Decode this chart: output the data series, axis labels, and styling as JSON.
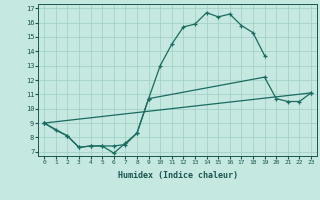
{
  "xlabel": "Humidex (Indice chaleur)",
  "bg_color": "#c5e8e0",
  "grid_color": "#9ecec5",
  "line_color": "#1a6b60",
  "xlim": [
    -0.5,
    23.5
  ],
  "ylim": [
    6.7,
    17.3
  ],
  "yticks": [
    7,
    8,
    9,
    10,
    11,
    12,
    13,
    14,
    15,
    16,
    17
  ],
  "xticks": [
    0,
    1,
    2,
    3,
    4,
    5,
    6,
    7,
    8,
    9,
    10,
    11,
    12,
    13,
    14,
    15,
    16,
    17,
    18,
    19,
    20,
    21,
    22,
    23
  ],
  "line1_x": [
    0,
    1,
    2,
    3,
    4,
    5,
    6,
    7,
    8,
    9,
    10,
    11,
    12,
    13,
    14,
    15,
    16,
    17,
    18,
    19
  ],
  "line1_y": [
    9.0,
    8.5,
    8.1,
    7.3,
    7.4,
    7.4,
    6.9,
    7.6,
    8.3,
    10.7,
    13.0,
    14.5,
    15.7,
    15.9,
    16.7,
    16.4,
    16.6,
    15.8,
    15.3,
    13.7
  ],
  "line2_x": [
    0,
    2,
    3,
    4,
    5,
    6,
    7,
    8,
    9,
    19,
    20,
    21,
    22,
    23
  ],
  "line2_y": [
    9.0,
    8.1,
    7.3,
    7.4,
    7.4,
    7.4,
    7.5,
    8.3,
    10.7,
    12.2,
    10.7,
    10.5,
    10.5,
    11.1
  ],
  "line3_x": [
    0,
    23
  ],
  "line3_y": [
    9.0,
    11.1
  ]
}
